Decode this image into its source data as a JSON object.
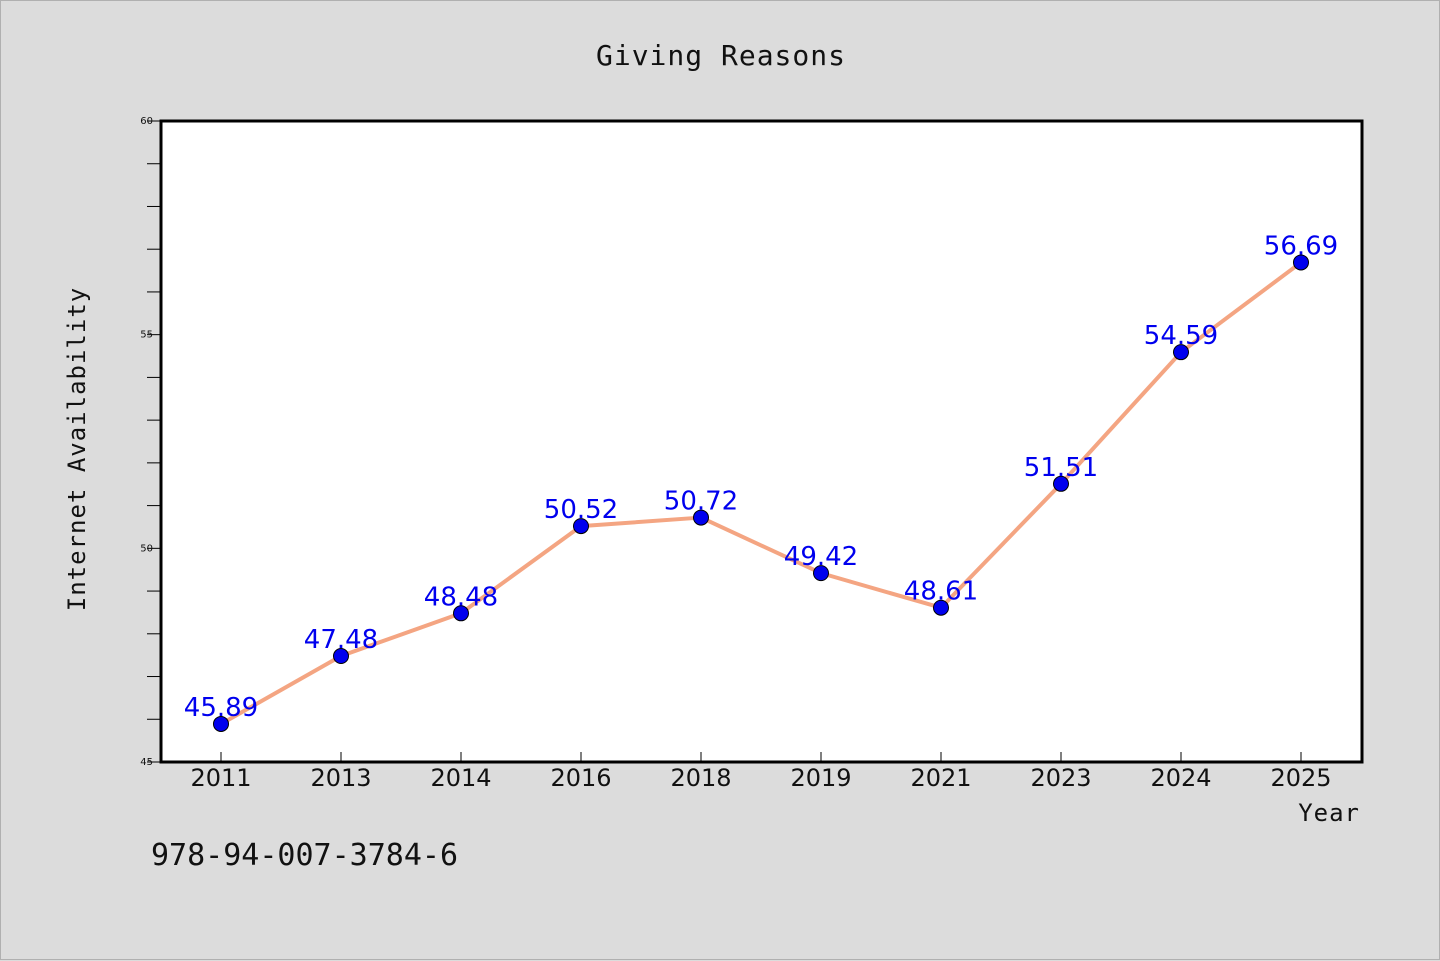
{
  "chart_data": {
    "type": "line",
    "title": "Giving Reasons",
    "xlabel": "Year",
    "ylabel": "Internet Availability",
    "categories": [
      "2011",
      "2013",
      "2014",
      "2016",
      "2018",
      "2019",
      "2021",
      "2023",
      "2024",
      "2025"
    ],
    "series": [
      {
        "values": [
          45.89,
          47.48,
          48.48,
          50.52,
          50.72,
          49.42,
          48.61,
          51.51,
          54.59,
          56.69
        ],
        "line_color": "#f4a582",
        "marker_color": "#0000ee"
      }
    ],
    "data_labels": [
      "45.89",
      "47.48",
      "48.48",
      "50.52",
      "50.72",
      "49.42",
      "48.61",
      "51.51",
      "54.59",
      "56.69"
    ],
    "ylim": [
      45,
      60
    ],
    "y_ticks": [
      45,
      50,
      55,
      60
    ],
    "y_minor_step": 1,
    "grid": false,
    "legend": "none"
  },
  "footer": {
    "isbn": "978-94-007-3784-6"
  },
  "colors": {
    "background": "#dcdcdc",
    "plot_background": "#ffffff",
    "label_color": "#0000ee"
  }
}
